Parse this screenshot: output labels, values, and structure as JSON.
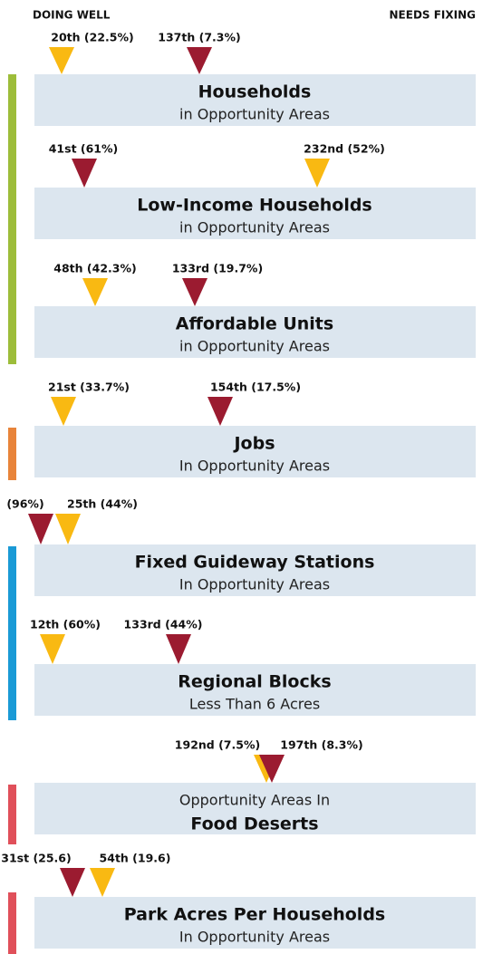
{
  "header": {
    "left": "DOING WELL",
    "right": "NEEDS FIXING"
  },
  "sections": [
    {
      "title": "Households",
      "subtitle": "in Opportunity Areas",
      "markers": [
        {
          "label": "20th (22.5%)",
          "color": "#f9b912"
        },
        {
          "label": "137th (7.3%)",
          "color": "#9b1b30"
        }
      ]
    },
    {
      "title": "Low-Income Households",
      "subtitle": "in Opportunity Areas",
      "markers": [
        {
          "label": "41st (61%)",
          "color": "#9b1b30"
        },
        {
          "label": "232nd (52%)",
          "color": "#f9b912"
        }
      ]
    },
    {
      "title": "Affordable Units",
      "subtitle": "in Opportunity Areas",
      "markers": [
        {
          "label": "48th (42.3%)",
          "color": "#f9b912"
        },
        {
          "label": "133rd (19.7%)",
          "color": "#9b1b30"
        }
      ]
    },
    {
      "title": "Jobs",
      "subtitle": "In Opportunity Areas",
      "markers": [
        {
          "label": "21st (33.7%)",
          "color": "#f9b912"
        },
        {
          "label": "154th (17.5%)",
          "color": "#9b1b30"
        }
      ]
    },
    {
      "title": "Fixed Guideway Stations",
      "subtitle": "In Opportunity Areas",
      "markers": [
        {
          "label": "(96%)",
          "color": "#9b1b30"
        },
        {
          "label": "25th (44%)",
          "color": "#f9b912"
        }
      ]
    },
    {
      "title": "Regional Blocks",
      "subtitle": "Less Than 6 Acres",
      "markers": [
        {
          "label": "12th (60%)",
          "color": "#f9b912"
        },
        {
          "label": "133rd (44%)",
          "color": "#9b1b30"
        }
      ]
    },
    {
      "title": "Food Deserts",
      "subtitle": "Opportunity Areas In",
      "markers": [
        {
          "label": "192nd (7.5%)",
          "color": "#f9b912"
        },
        {
          "label": "197th (8.3%)",
          "color": "#9b1b30"
        }
      ]
    },
    {
      "title": "Park Acres Per Households",
      "subtitle": "In Opportunity Areas",
      "markers": [
        {
          "label": "31st (25.6)",
          "color": "#9b1b30"
        },
        {
          "label": "54th (19.6)",
          "color": "#f9b912"
        }
      ]
    }
  ]
}
